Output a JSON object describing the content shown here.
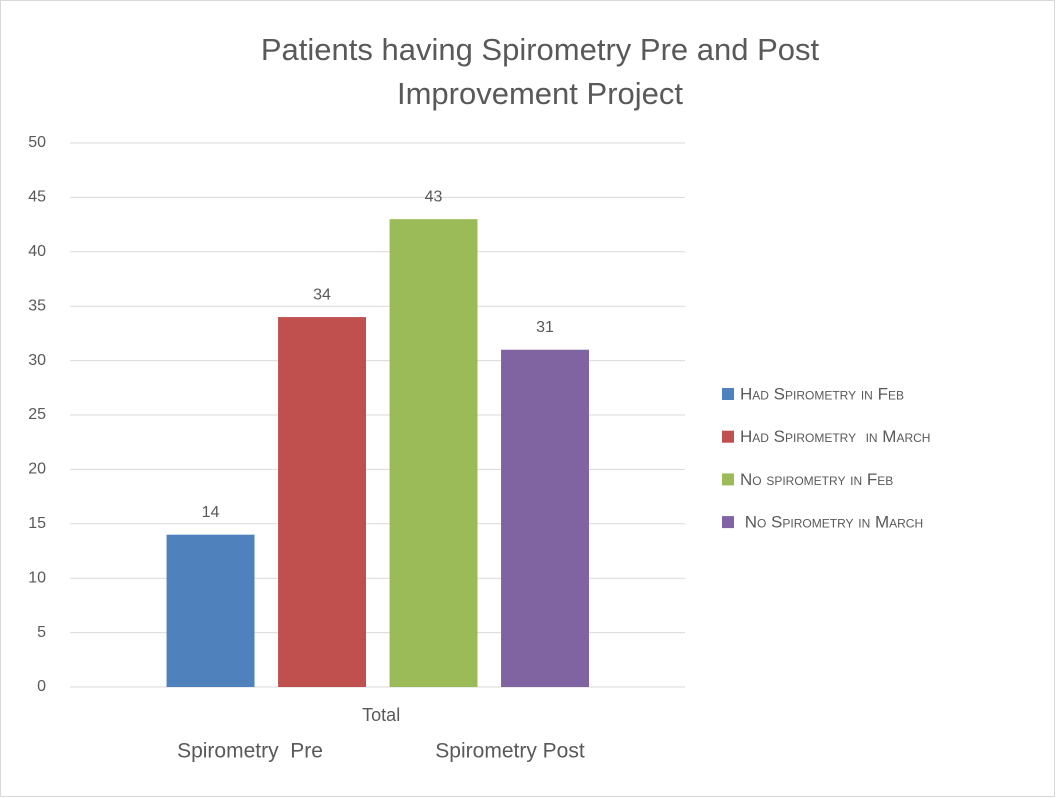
{
  "chart_data": {
    "type": "bar",
    "title": "Patients having Spirometry Pre and Post Improvement Project",
    "categories": [
      "Total"
    ],
    "series": [
      {
        "name": "Had Spirometry in Feb",
        "color": "#4f81bd",
        "values": [
          14
        ]
      },
      {
        "name": "Had Spirometry  in March",
        "color": "#c0504d",
        "values": [
          34
        ]
      },
      {
        "name": "No spirometry in Feb",
        "color": "#9bbb59",
        "values": [
          43
        ]
      },
      {
        "name": " No Spirometry in March",
        "color": "#8064a2",
        "values": [
          31
        ]
      }
    ],
    "annotations": [
      "Spirometry  Pre",
      "Spirometry Post"
    ],
    "ylim": [
      0,
      50
    ],
    "yticks": [
      0,
      5,
      10,
      15,
      20,
      25,
      30,
      35,
      40,
      45,
      50
    ],
    "grid": true,
    "legend": "right"
  }
}
